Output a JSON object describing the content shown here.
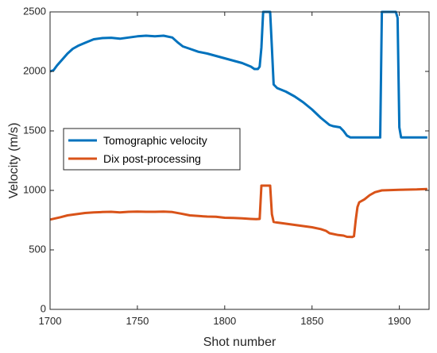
{
  "chart_data": {
    "type": "line",
    "xlabel": "Shot number",
    "ylabel": "Velocity (m/s)",
    "xlim": [
      1700,
      1917
    ],
    "ylim": [
      0,
      2500
    ],
    "xticks": [
      "1700",
      "1750",
      "1800",
      "1850",
      "1900"
    ],
    "yticks": [
      "0",
      "500",
      "1000",
      "1500",
      "2000",
      "2500"
    ],
    "grid": false,
    "legend_position": "middle-left",
    "series": [
      {
        "name": "Tomographic velocity",
        "color": "#0072BD",
        "x": [
          1700,
          1702,
          1704,
          1707,
          1710,
          1713,
          1716,
          1720,
          1725,
          1730,
          1735,
          1740,
          1745,
          1750,
          1755,
          1760,
          1765,
          1770,
          1773,
          1776,
          1780,
          1785,
          1790,
          1795,
          1800,
          1805,
          1810,
          1815,
          1817,
          1819,
          1820,
          1821,
          1822,
          1826,
          1827,
          1828,
          1830,
          1835,
          1840,
          1845,
          1850,
          1855,
          1860,
          1862,
          1866,
          1868,
          1870,
          1872,
          1875,
          1880,
          1885,
          1888,
          1889,
          1890,
          1898,
          1899,
          1900,
          1901,
          1905,
          1910,
          1916
        ],
        "y": [
          2000,
          2010,
          2050,
          2100,
          2150,
          2190,
          2215,
          2240,
          2270,
          2280,
          2283,
          2275,
          2285,
          2295,
          2300,
          2295,
          2300,
          2285,
          2245,
          2210,
          2190,
          2165,
          2150,
          2130,
          2110,
          2090,
          2070,
          2040,
          2020,
          2020,
          2040,
          2200,
          2500,
          2500,
          2200,
          1890,
          1860,
          1830,
          1790,
          1740,
          1680,
          1610,
          1550,
          1540,
          1530,
          1500,
          1460,
          1445,
          1445,
          1445,
          1445,
          1445,
          1445,
          2500,
          2500,
          2450,
          1530,
          1445,
          1445,
          1445,
          1445
        ]
      },
      {
        "name": "Dix post-processing",
        "color": "#D95319",
        "x": [
          1700,
          1703,
          1706,
          1710,
          1715,
          1720,
          1725,
          1730,
          1735,
          1740,
          1745,
          1750,
          1755,
          1760,
          1765,
          1770,
          1775,
          1780,
          1785,
          1790,
          1795,
          1800,
          1805,
          1810,
          1815,
          1818,
          1820,
          1821,
          1826,
          1827,
          1828,
          1830,
          1835,
          1840,
          1845,
          1850,
          1855,
          1858,
          1860,
          1865,
          1868,
          1870,
          1873,
          1874,
          1875,
          1876,
          1877,
          1880,
          1883,
          1886,
          1890,
          1895,
          1900,
          1905,
          1910,
          1916
        ],
        "y": [
          755,
          765,
          775,
          790,
          800,
          810,
          815,
          818,
          820,
          815,
          820,
          822,
          820,
          820,
          822,
          818,
          805,
          790,
          785,
          780,
          778,
          770,
          768,
          765,
          760,
          758,
          760,
          1040,
          1040,
          800,
          735,
          730,
          720,
          710,
          700,
          690,
          675,
          660,
          640,
          625,
          620,
          610,
          608,
          615,
          750,
          860,
          900,
          925,
          960,
          985,
          1000,
          1003,
          1005,
          1007,
          1008,
          1012
        ]
      }
    ]
  }
}
